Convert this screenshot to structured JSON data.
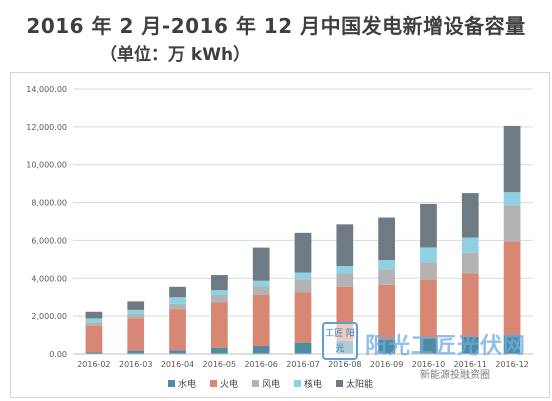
{
  "page": {
    "title": "2016 年 2 月-2016 年 12 月中国发电新增设备容量",
    "subtitle": "（单位：万 kWh）"
  },
  "watermark": {
    "logo_text": "工匠 阳光",
    "brand_text": "阳光工匠光伏网",
    "account_text": "新能源投融资圈"
  },
  "chart_data": {
    "type": "bar",
    "stacked": true,
    "categories": [
      "2016-02",
      "2016-03",
      "2016-04",
      "2016-05",
      "2016-06",
      "2016-07",
      "2016-08",
      "2016-09",
      "2016-10",
      "2016-11",
      "2016-12"
    ],
    "series": [
      {
        "name": "水电",
        "color": "#4e8ca3",
        "values": [
          80,
          180,
          200,
          320,
          420,
          600,
          700,
          760,
          830,
          900,
          1000
        ]
      },
      {
        "name": "火电",
        "color": "#d98775",
        "values": [
          1400,
          1700,
          2150,
          2400,
          2700,
          2650,
          2850,
          2900,
          3100,
          3350,
          4950
        ]
      },
      {
        "name": "风电",
        "color": "#b3b3b3",
        "values": [
          200,
          250,
          300,
          400,
          450,
          700,
          700,
          800,
          900,
          1100,
          1900
        ]
      },
      {
        "name": "核电",
        "color": "#8fd1e3",
        "values": [
          200,
          200,
          350,
          250,
          300,
          350,
          400,
          500,
          800,
          800,
          700
        ]
      },
      {
        "name": "太阳能",
        "color": "#6e7b84",
        "values": [
          350,
          450,
          550,
          800,
          1750,
          2100,
          2200,
          2250,
          2300,
          2350,
          3500
        ]
      }
    ],
    "ylim": [
      0,
      14000
    ],
    "ytick_values": [
      0,
      2000,
      4000,
      6000,
      8000,
      10000,
      12000,
      14000
    ],
    "ytick_labels": [
      "0.00",
      "2,000.00",
      "4,000.00",
      "6,000.00",
      "8,000.00",
      "10,000.00",
      "12,000.00",
      "14,000.00"
    ],
    "grid": true,
    "legend_position": "bottom"
  }
}
